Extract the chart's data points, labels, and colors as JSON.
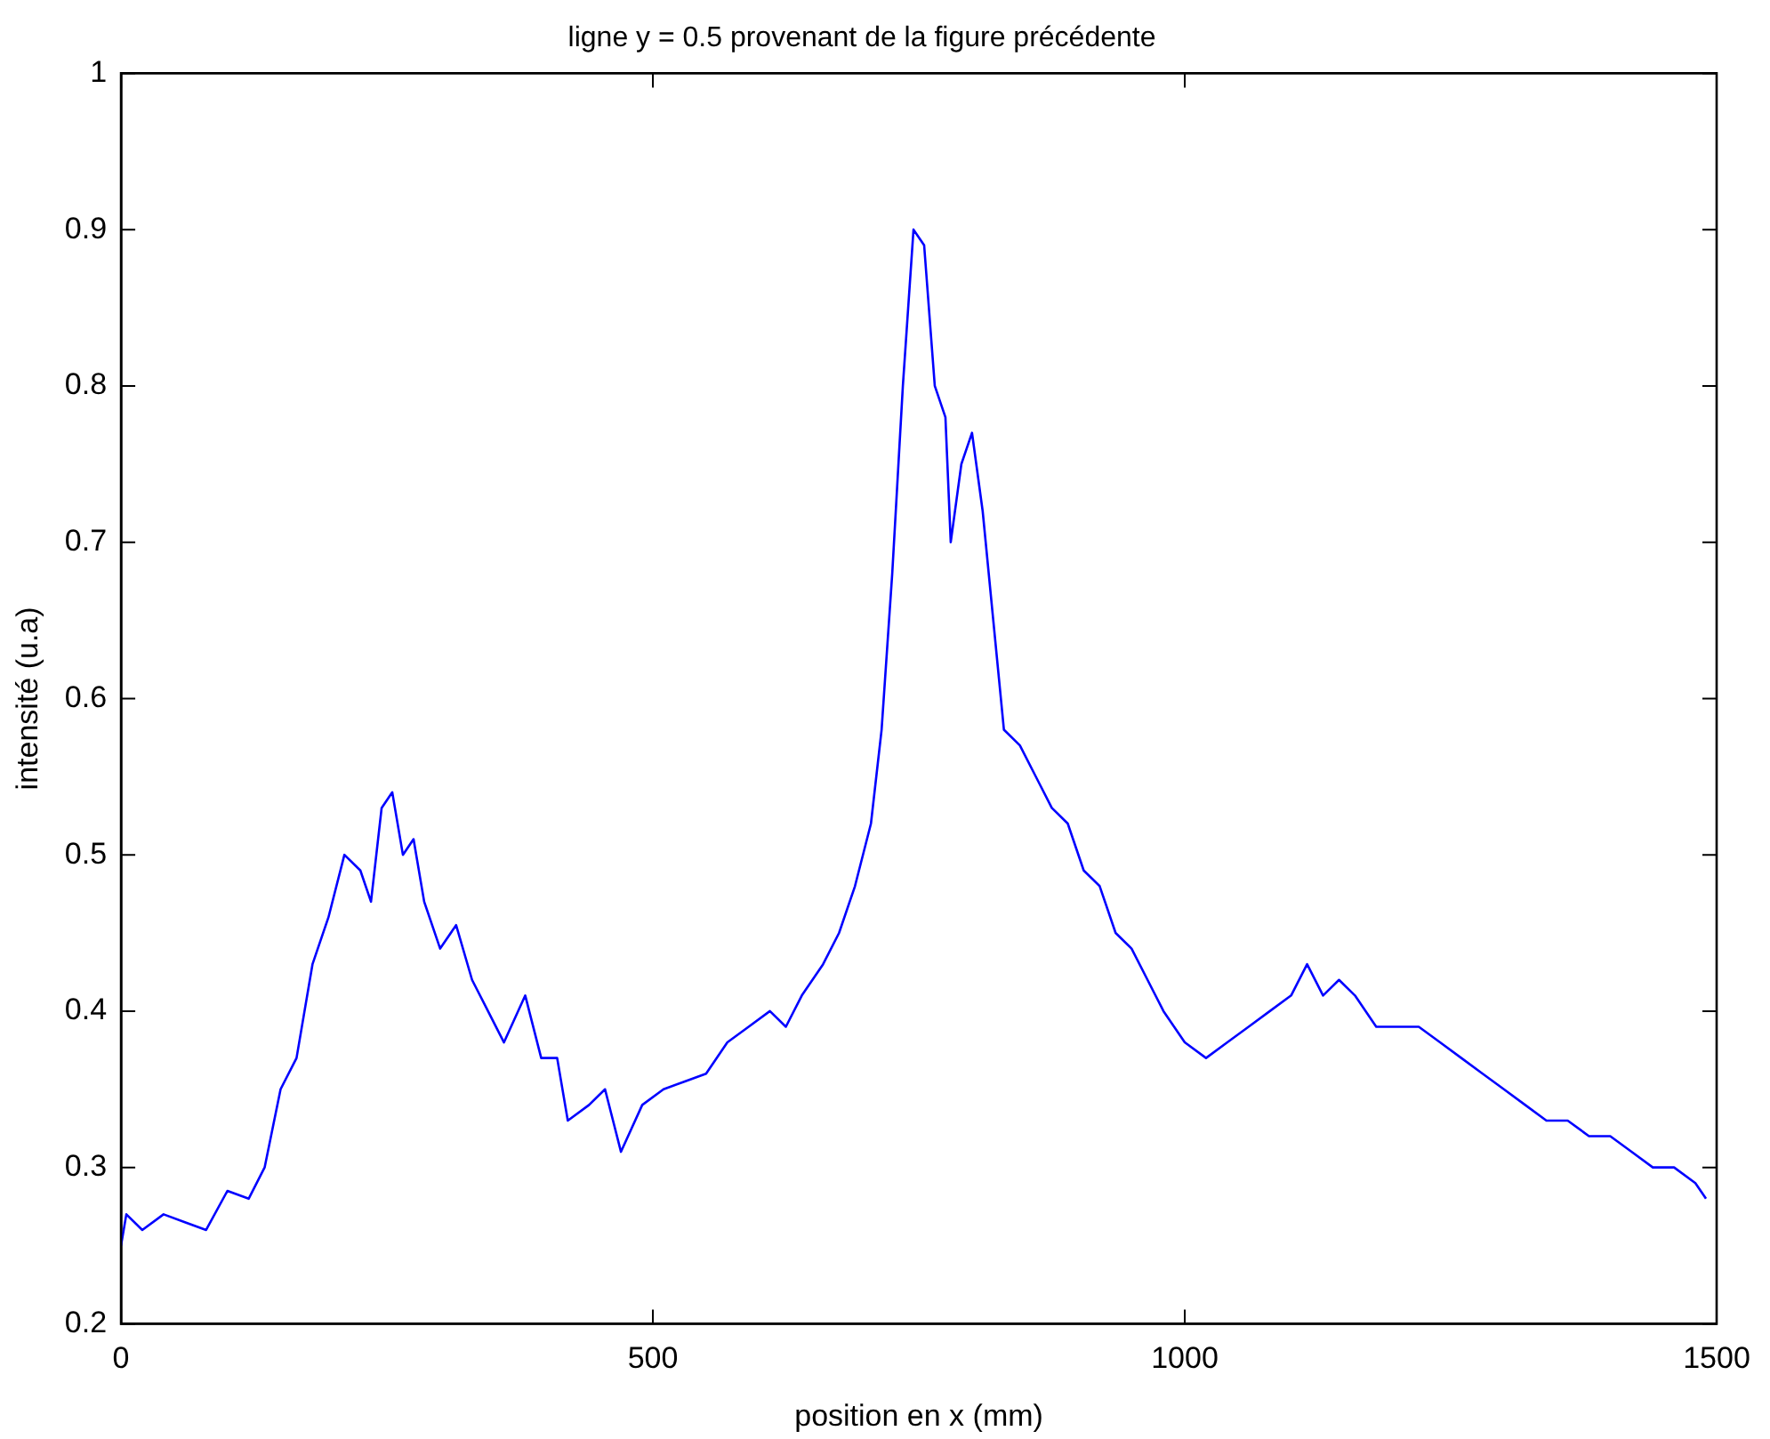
{
  "chart_data": {
    "type": "line",
    "title": "ligne y = 0.5 provenant de la figure précédente",
    "xlabel": "position en x (mm)",
    "ylabel": "intensité (u.a)",
    "xlim": [
      0,
      1500
    ],
    "xticks": [
      0,
      500,
      1000,
      1500
    ],
    "ylim": [
      0.2,
      1
    ],
    "yticks": [
      0.2,
      0.3,
      0.4,
      0.5,
      0.6,
      0.7,
      0.8,
      0.9,
      1
    ],
    "grid": false,
    "legend": false,
    "marker": "none",
    "line_style": "solid",
    "series": [
      {
        "color": "#0000ff",
        "x": [
          0,
          5,
          20,
          40,
          60,
          80,
          100,
          120,
          135,
          150,
          165,
          180,
          195,
          210,
          225,
          235,
          245,
          255,
          265,
          275,
          285,
          300,
          315,
          330,
          345,
          360,
          380,
          395,
          410,
          420,
          440,
          455,
          470,
          490,
          510,
          530,
          550,
          570,
          590,
          610,
          625,
          640,
          660,
          675,
          690,
          705,
          715,
          725,
          735,
          745,
          755,
          765,
          775,
          780,
          790,
          800,
          810,
          820,
          830,
          845,
          860,
          875,
          890,
          905,
          920,
          935,
          950,
          965,
          980,
          1000,
          1020,
          1040,
          1060,
          1080,
          1100,
          1115,
          1130,
          1145,
          1160,
          1180,
          1200,
          1220,
          1240,
          1260,
          1280,
          1300,
          1320,
          1340,
          1360,
          1380,
          1400,
          1420,
          1440,
          1460,
          1480,
          1490
        ],
        "values": [
          0.25,
          0.27,
          0.26,
          0.27,
          0.265,
          0.26,
          0.285,
          0.28,
          0.3,
          0.35,
          0.37,
          0.43,
          0.46,
          0.5,
          0.49,
          0.47,
          0.53,
          0.54,
          0.5,
          0.51,
          0.47,
          0.44,
          0.455,
          0.42,
          0.4,
          0.38,
          0.41,
          0.37,
          0.37,
          0.33,
          0.34,
          0.35,
          0.31,
          0.34,
          0.35,
          0.355,
          0.36,
          0.38,
          0.39,
          0.4,
          0.39,
          0.41,
          0.43,
          0.45,
          0.48,
          0.52,
          0.58,
          0.68,
          0.8,
          0.9,
          0.89,
          0.8,
          0.78,
          0.7,
          0.75,
          0.77,
          0.72,
          0.65,
          0.58,
          0.57,
          0.55,
          0.53,
          0.52,
          0.49,
          0.48,
          0.45,
          0.44,
          0.42,
          0.4,
          0.38,
          0.37,
          0.38,
          0.39,
          0.4,
          0.41,
          0.43,
          0.41,
          0.42,
          0.41,
          0.39,
          0.39,
          0.39,
          0.38,
          0.37,
          0.36,
          0.35,
          0.34,
          0.33,
          0.33,
          0.32,
          0.32,
          0.31,
          0.3,
          0.3,
          0.29,
          0.28
        ]
      }
    ]
  }
}
